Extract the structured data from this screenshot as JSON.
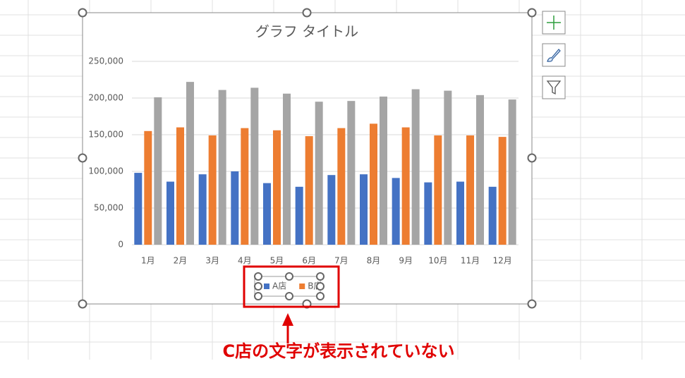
{
  "chart_data": {
    "type": "bar",
    "title": "グラフ タイトル",
    "categories": [
      "1月",
      "2月",
      "3月",
      "4月",
      "5月",
      "6月",
      "7月",
      "8月",
      "9月",
      "10月",
      "11月",
      "12月"
    ],
    "series": [
      {
        "name": "A店",
        "color": "#4472c4",
        "values": [
          98000,
          86000,
          96000,
          100000,
          84000,
          79000,
          95000,
          96000,
          91000,
          85000,
          86000,
          79000
        ]
      },
      {
        "name": "B店",
        "color": "#ed7d31",
        "values": [
          155000,
          160000,
          149000,
          159000,
          156000,
          148000,
          159000,
          165000,
          160000,
          149000,
          149000,
          147000
        ]
      },
      {
        "color": "#a5a5a5",
        "values": [
          201000,
          222000,
          211000,
          214000,
          206000,
          195000,
          196000,
          202000,
          212000,
          210000,
          204000,
          198000
        ]
      }
    ],
    "ylim": [
      0,
      250000
    ],
    "yticks": [
      0,
      {
        "value": 50000,
        "label": "50,000"
      },
      {
        "value": 100000,
        "label": "100,000"
      },
      {
        "value": 150000,
        "label": "150,000"
      },
      {
        "value": 200000,
        "label": "200,000"
      },
      {
        "value": 250000,
        "label": "250,000"
      }
    ],
    "grid": true,
    "legend": "bottom"
  },
  "annotation": "C店の文字が表示されていない"
}
